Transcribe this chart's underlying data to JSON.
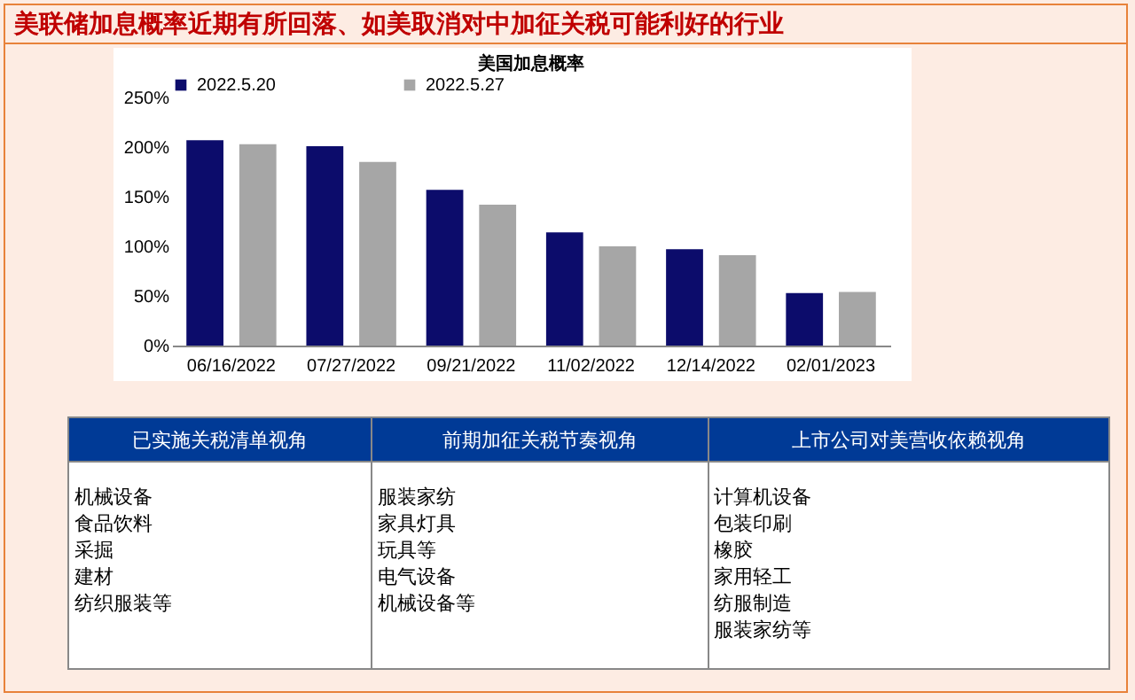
{
  "chart_data": [
    {
      "type": "bar",
      "title": "美联储加息概率近期有所回落、如美取消对中加征关税可能利好的行业",
      "subtitle": "美国加息概率",
      "categories": [
        "06/16/2022",
        "07/27/2022",
        "09/21/2022",
        "11/02/2022",
        "12/14/2022",
        "02/01/2023"
      ],
      "series": [
        {
          "name": "2022.5.20",
          "color": "#0c0c6b",
          "values": [
            207,
            201,
            157,
            114,
            97,
            53
          ]
        },
        {
          "name": "2022.5.27",
          "color": "#a6a6a6",
          "values": [
            203,
            185,
            142,
            100,
            91,
            54
          ]
        }
      ],
      "ylim": [
        0,
        250
      ],
      "yticks": [
        {
          "value": 0,
          "label": "0%"
        },
        {
          "value": 50,
          "label": "50%"
        },
        {
          "value": 100,
          "label": "100%"
        },
        {
          "value": 150,
          "label": "150%"
        },
        {
          "value": 200,
          "label": "200%"
        },
        {
          "value": 250,
          "label": "250%"
        }
      ],
      "grid": false,
      "legend": "top"
    },
    {
      "type": "other",
      "title": "已实施关税清单视角",
      "annotations": [
        "机械设备",
        "食品饮料",
        "采掘",
        "建材",
        "纺织服装等"
      ]
    },
    {
      "type": "other",
      "title": "前期加征关税节奏视角",
      "annotations": [
        "服装家纺",
        "家具灯具",
        "玩具等",
        "电气设备",
        "机械设备等"
      ]
    },
    {
      "type": "other",
      "title": "上市公司对美营收依赖视角",
      "annotations": [
        "计算机设备",
        "包装印刷",
        "橡胶",
        "家用轻工",
        "纺服制造",
        "服装家纺等"
      ]
    }
  ]
}
